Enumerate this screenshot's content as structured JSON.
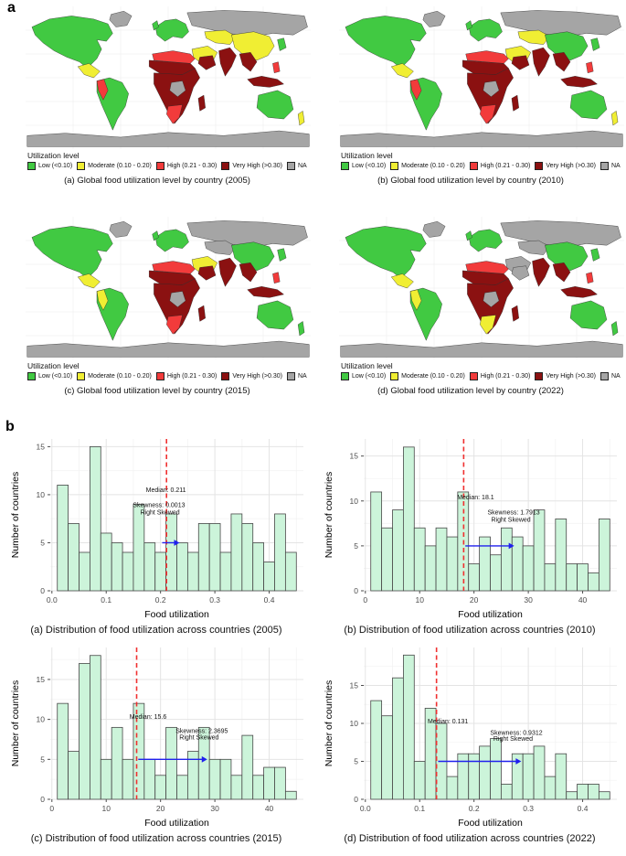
{
  "panel_labels": {
    "a": "a",
    "b": "b"
  },
  "legend": {
    "title": "Utilization level",
    "items": [
      {
        "key": "low",
        "label": "Low (<0.10)",
        "color": "#41c942"
      },
      {
        "key": "moderate",
        "label": "Moderate (0.10 - 0.20)",
        "color": "#f0ee33"
      },
      {
        "key": "high",
        "label": "High (0.21 - 0.30)",
        "color": "#f23b3b"
      },
      {
        "key": "very_high",
        "label": "Very High (>0.30)",
        "color": "#8b1111"
      },
      {
        "key": "na",
        "label": "NA",
        "color": "#a5a5a5"
      }
    ]
  },
  "maps": [
    {
      "year": "2005",
      "caption": "(a) Global food utilization level by country (2005)",
      "regions": {
        "greenland": "na",
        "russia": "na",
        "antarctica": "na",
        "north_america": "low",
        "mexico": "moderate",
        "south_america": "low",
        "andes": "high",
        "europe": "low",
        "uk": "low",
        "central_asia": "moderate",
        "east_asia": "moderate",
        "japan": "low",
        "middle_east": "moderate",
        "saudi": "very_high",
        "n_africa": "high",
        "sahel": "very_high",
        "subsaharan": "very_high",
        "congo": "na",
        "s_africa": "high",
        "madagascar": "very_high",
        "india": "very_high",
        "indochina": "very_high",
        "indonesia": "very_high",
        "philippines": "high",
        "australia": "low",
        "new_zealand": "moderate"
      }
    },
    {
      "year": "2010",
      "caption": "(b) Global food utilization level by country (2010)",
      "regions": {
        "greenland": "na",
        "russia": "na",
        "antarctica": "na",
        "north_america": "low",
        "mexico": "moderate",
        "south_america": "low",
        "andes": "high",
        "europe": "low",
        "uk": "low",
        "central_asia": "moderate",
        "east_asia": "low",
        "japan": "low",
        "middle_east": "moderate",
        "saudi": "very_high",
        "n_africa": "high",
        "sahel": "very_high",
        "subsaharan": "very_high",
        "congo": "na",
        "s_africa": "high",
        "madagascar": "very_high",
        "india": "very_high",
        "indochina": "very_high",
        "indonesia": "very_high",
        "philippines": "high",
        "australia": "low",
        "new_zealand": "moderate"
      }
    },
    {
      "year": "2015",
      "caption": "(c) Global food utilization level by country (2015)",
      "regions": {
        "greenland": "na",
        "russia": "na",
        "antarctica": "na",
        "north_america": "low",
        "mexico": "moderate",
        "south_america": "low",
        "andes": "moderate",
        "europe": "low",
        "uk": "low",
        "central_asia": "na",
        "east_asia": "low",
        "japan": "low",
        "middle_east": "moderate",
        "saudi": "very_high",
        "n_africa": "high",
        "sahel": "very_high",
        "subsaharan": "very_high",
        "congo": "na",
        "s_africa": "high",
        "madagascar": "very_high",
        "india": "very_high",
        "indochina": "very_high",
        "indonesia": "very_high",
        "philippines": "high",
        "australia": "low",
        "new_zealand": "low"
      }
    },
    {
      "year": "2022",
      "caption": "(d) Global food utilization level by country (2022)",
      "regions": {
        "greenland": "na",
        "russia": "na",
        "antarctica": "na",
        "north_america": "low",
        "mexico": "moderate",
        "south_america": "low",
        "andes": "moderate",
        "europe": "low",
        "uk": "low",
        "central_asia": "na",
        "east_asia": "low",
        "japan": "low",
        "middle_east": "na",
        "saudi": "na",
        "n_africa": "high",
        "sahel": "very_high",
        "subsaharan": "very_high",
        "congo": "na",
        "s_africa": "moderate",
        "madagascar": "very_high",
        "india": "very_high",
        "indochina": "very_high",
        "indonesia": "very_high",
        "philippines": "high",
        "australia": "low",
        "new_zealand": "low"
      }
    }
  ],
  "chart_data": [
    {
      "type": "bar",
      "caption": "(a) Distribution of food utilization across countries (2005)",
      "xlabel": "Food utilization",
      "ylabel": "Number of countries",
      "bin_start": 0.01,
      "bin_width": 0.02,
      "values": [
        11,
        7,
        4,
        15,
        6,
        5,
        4,
        9,
        5,
        4,
        8,
        5,
        4,
        7,
        7,
        4,
        8,
        7,
        5,
        3,
        8,
        4
      ],
      "xticks": [
        0,
        0.1,
        0.2,
        0.3,
        0.4
      ],
      "xtick_labels": [
        "0.0",
        "0.1",
        "0.2",
        "0.3",
        "0.4"
      ],
      "yticks": [
        0,
        5,
        10,
        15
      ],
      "xlim": [
        -0.003,
        0.463
      ],
      "ylim": [
        0,
        15.8
      ],
      "median_value": 0.211,
      "median_label": {
        "text": "Median: 0.211",
        "x": 0.21,
        "y": 10.3
      },
      "skewness_label": {
        "text": "Skewness: 0.0013",
        "x": 0.197,
        "y": 8.7
      },
      "skew_note": {
        "text": "Right Skewed",
        "x": 0.199,
        "y": 7.95
      },
      "arrow": {
        "x1": 0.203,
        "x2": 0.235,
        "y": 5
      },
      "bar_fill": "#ccf4da",
      "bar_stroke": "#474747",
      "median_color": "#f03030",
      "arrow_color": "#2020ee"
    },
    {
      "type": "bar",
      "caption": "(b) Distribution of food utilization across countries (2010)",
      "xlabel": "Food utilization",
      "ylabel": "Number of countries",
      "bin_start": 1,
      "bin_width": 2,
      "values": [
        11,
        7,
        9,
        16,
        7,
        5,
        7,
        6,
        11,
        3,
        6,
        4,
        7,
        6,
        5,
        9,
        3,
        8,
        3,
        3,
        2,
        8
      ],
      "xticks": [
        0,
        10,
        20,
        30,
        40
      ],
      "xtick_labels": [
        "0",
        "10",
        "20",
        "30",
        "40"
      ],
      "yticks": [
        0,
        5,
        10,
        15
      ],
      "xlim": [
        -0.3,
        46.3
      ],
      "ylim": [
        0,
        16.9
      ],
      "median_value": 18.1,
      "median_label": {
        "text": "Median: 18.1",
        "x": 20.3,
        "y": 10.2
      },
      "skewness_label": {
        "text": "Skewness: 1.7913",
        "x": 27.3,
        "y": 8.5
      },
      "skew_note": {
        "text": "Right Skewed",
        "x": 26.8,
        "y": 7.7
      },
      "arrow": {
        "x1": 18.4,
        "x2": 27.4,
        "y": 5
      },
      "bar_fill": "#ccf4da",
      "bar_stroke": "#474747",
      "median_color": "#f03030",
      "arrow_color": "#2020ee"
    },
    {
      "type": "bar",
      "caption": "(c) Distribution of food utilization across countries (2015)",
      "xlabel": "Food utilization",
      "ylabel": "Number of countries",
      "bin_start": 1,
      "bin_width": 2,
      "values": [
        12,
        6,
        17,
        18,
        5,
        9,
        5,
        12,
        5,
        3,
        9,
        3,
        6,
        9,
        5,
        5,
        3,
        8,
        3,
        4,
        4,
        1
      ],
      "xticks": [
        0,
        10,
        20,
        30,
        40
      ],
      "xtick_labels": [
        "0",
        "10",
        "20",
        "30",
        "40"
      ],
      "yticks": [
        0,
        5,
        10,
        15
      ],
      "xlim": [
        -0.3,
        46.3
      ],
      "ylim": [
        0,
        19.0
      ],
      "median_value": 15.6,
      "median_label": {
        "text": "Median: 15.6",
        "x": 17.7,
        "y": 10.1
      },
      "skewness_label": {
        "text": "Skewness: 2.3695",
        "x": 27.6,
        "y": 8.3
      },
      "skew_note": {
        "text": "Right Skewed",
        "x": 27.1,
        "y": 7.5
      },
      "arrow": {
        "x1": 15.9,
        "x2": 28.6,
        "y": 5
      },
      "bar_fill": "#ccf4da",
      "bar_stroke": "#474747",
      "median_color": "#f03030",
      "arrow_color": "#2020ee"
    },
    {
      "type": "bar",
      "caption": "(d) Distribution of food utilization across countries (2022)",
      "xlabel": "Food utilization",
      "ylabel": "Number of countries",
      "bin_start": 0.01,
      "bin_width": 0.02,
      "values": [
        13,
        11,
        16,
        19,
        5,
        12,
        10,
        3,
        6,
        6,
        7,
        8,
        2,
        6,
        6,
        7,
        3,
        6,
        1,
        2,
        2,
        1
      ],
      "xticks": [
        0,
        0.1,
        0.2,
        0.3,
        0.4
      ],
      "xtick_labels": [
        "0.0",
        "0.1",
        "0.2",
        "0.3",
        "0.4"
      ],
      "yticks": [
        0,
        5,
        10,
        15
      ],
      "xlim": [
        -0.003,
        0.463
      ],
      "ylim": [
        0,
        20.0
      ],
      "median_value": 0.131,
      "median_label": {
        "text": "Median: 0.131",
        "x": 0.152,
        "y": 10.0
      },
      "skewness_label": {
        "text": "Skewness: 0.9312",
        "x": 0.278,
        "y": 8.5
      },
      "skew_note": {
        "text": "Right Skewed",
        "x": 0.272,
        "y": 7.7
      },
      "arrow": {
        "x1": 0.134,
        "x2": 0.287,
        "y": 5
      },
      "bar_fill": "#ccf4da",
      "bar_stroke": "#474747",
      "median_color": "#f03030",
      "arrow_color": "#2020ee"
    }
  ]
}
